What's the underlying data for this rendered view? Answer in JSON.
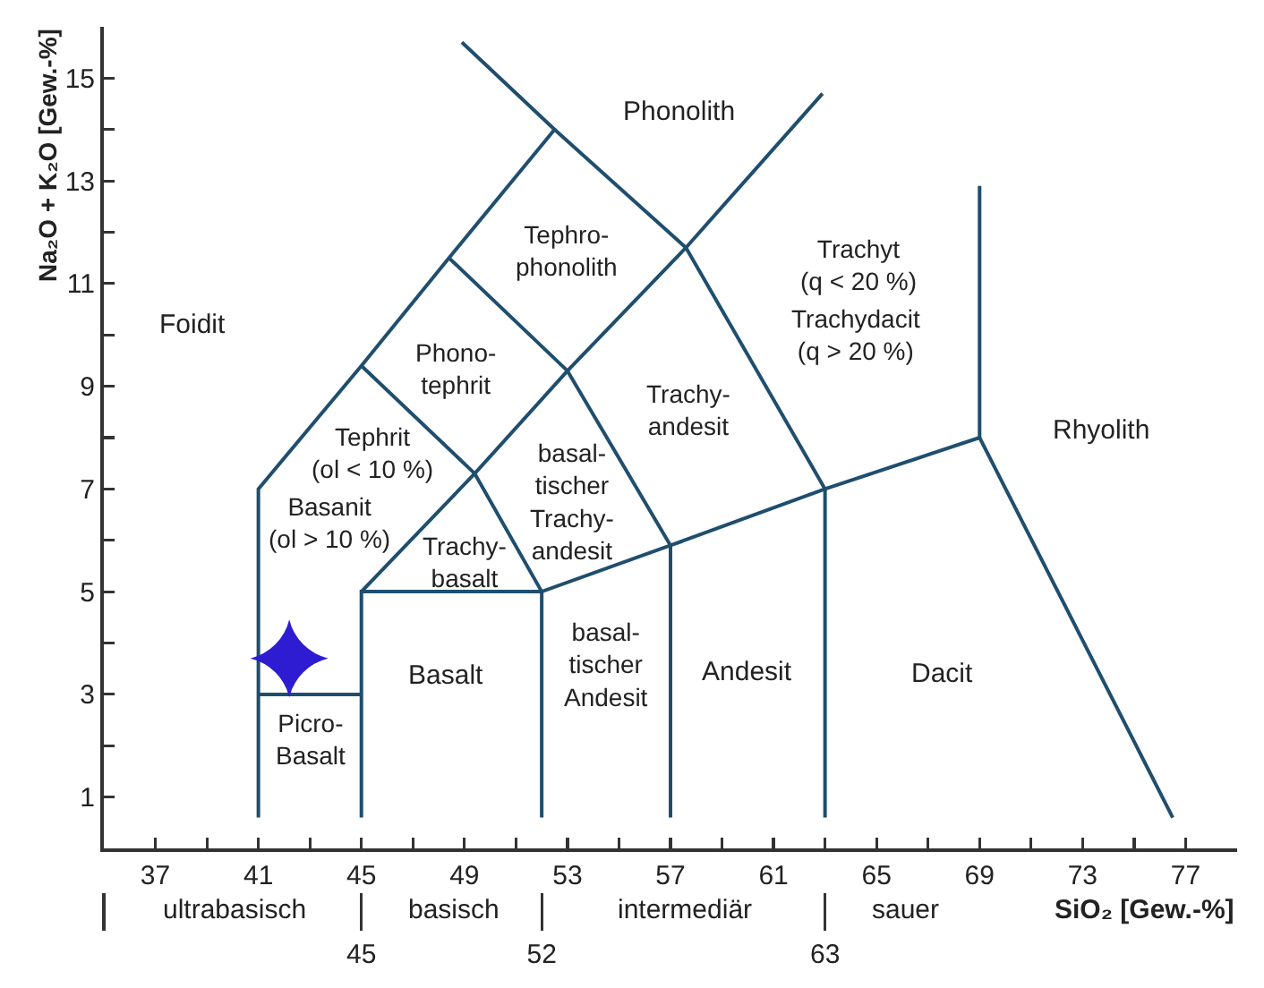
{
  "chart_data": {
    "type": "line",
    "xlabel": "SiO₂ [Gew.-%]",
    "ylabel": "Na₂O + K₂O [Gew.-%]",
    "xlim": [
      35,
      79
    ],
    "xticks": [
      37,
      {
        "value": 39,
        "label": null
      },
      41,
      {
        "value": 43,
        "label": null
      },
      45,
      {
        "value": 47,
        "label": null
      },
      49,
      {
        "value": 51,
        "label": null
      },
      53,
      {
        "value": 55,
        "label": null
      },
      57,
      {
        "value": 59,
        "label": null
      },
      61,
      {
        "value": 63,
        "label": null
      },
      65,
      {
        "value": 67,
        "label": null
      },
      69,
      {
        "value": 71,
        "label": null
      },
      73,
      {
        "value": 75,
        "label": null
      },
      77
    ],
    "ylim": [
      0,
      16
    ],
    "yticks": [
      1,
      {
        "value": 2,
        "label": null
      },
      3,
      {
        "value": 4,
        "label": null
      },
      5,
      {
        "value": 6,
        "label": null
      },
      7,
      {
        "value": 8,
        "label": null
      },
      9,
      {
        "value": 10,
        "label": null
      },
      11,
      {
        "value": 12,
        "label": null
      },
      13,
      {
        "value": 14,
        "label": null
      },
      15
    ],
    "x2lim": [
      35,
      79
    ],
    "x2ticks": [
      {
        "value": 35,
        "label": null
      },
      45,
      52,
      63
    ],
    "series": [
      {
        "color": "#1f4e6e",
        "x": [
          41,
          41,
          45,
          48.4,
          52.5,
          48.9
        ],
        "values": [
          0.6,
          7,
          9.4,
          11.5,
          14,
          15.7
        ]
      },
      {
        "color": "#1f4e6e",
        "x": [
          41,
          45
        ],
        "values": [
          3,
          3
        ]
      },
      {
        "color": "#1f4e6e",
        "x": [
          45,
          45,
          52,
          57,
          63,
          69,
          76.5
        ],
        "values": [
          0.6,
          5,
          5,
          5.9,
          7,
          8,
          0.6
        ]
      },
      {
        "color": "#1f4e6e",
        "x": [
          52,
          52
        ],
        "values": [
          0.6,
          5
        ]
      },
      {
        "color": "#1f4e6e",
        "x": [
          57,
          57
        ],
        "values": [
          0.6,
          5.9
        ]
      },
      {
        "color": "#1f4e6e",
        "x": [
          63,
          63
        ],
        "values": [
          0.6,
          7
        ]
      },
      {
        "color": "#1f4e6e",
        "x": [
          69,
          69
        ],
        "values": [
          8,
          12.9
        ]
      },
      {
        "color": "#1f4e6e",
        "x": [
          45,
          49.4,
          52
        ],
        "values": [
          9.4,
          7.3,
          5
        ]
      },
      {
        "color": "#1f4e6e",
        "x": [
          45,
          49.4,
          53,
          57.6,
          62.9
        ],
        "values": [
          5,
          7.3,
          9.3,
          11.7,
          14.7
        ]
      },
      {
        "color": "#1f4e6e",
        "x": [
          48.4,
          53,
          57
        ],
        "values": [
          11.5,
          9.3,
          5.9
        ]
      },
      {
        "color": "#1f4e6e",
        "x": [
          52.5,
          57.6,
          63
        ],
        "values": [
          14,
          11.7,
          7
        ]
      },
      {
        "type": "scatter",
        "marker": "star",
        "color": "#2e1cd2",
        "x": [
          42.2
        ],
        "values": [
          3.7
        ]
      }
    ],
    "annotations": [
      "Foidit",
      "Phonolith",
      "Tephro-\nphonolith",
      "Phono-\ntephrit",
      "Tephrit\n(ol < 10 %)",
      "Basanit\n(ol > 10 %)",
      "Trachy-\nbasalt",
      "basal-\ntischer\nTrachy-\nandesit",
      "Trachy-\nandesit",
      "Trachyt\n(q < 20 %)",
      "Trachydacit\n(q > 20 %)",
      "Rhyolith",
      "Basalt",
      "Picro-\nBasalt",
      "basal-\ntischer\nAndesit",
      "Andesit",
      "Dacit",
      "ultrabasisch",
      "basisch",
      "intermediär",
      "sauer"
    ]
  }
}
